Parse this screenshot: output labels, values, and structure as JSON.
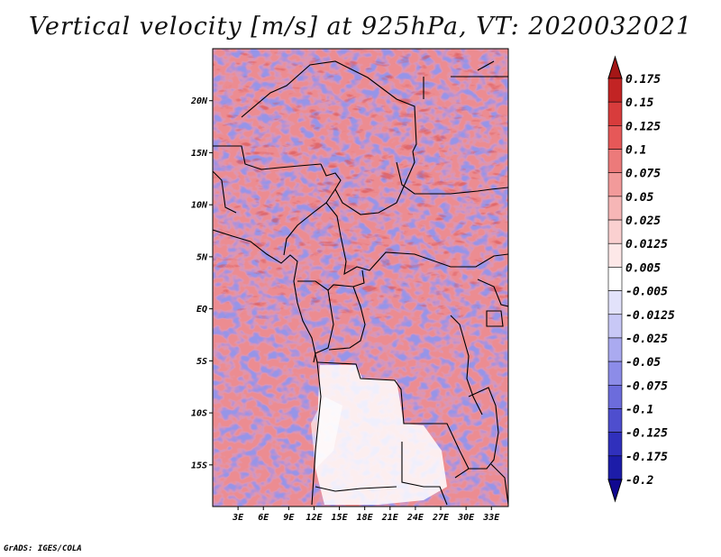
{
  "title": "Vertical velocity [m/s] at 925hPa, VT: 2020032021",
  "credit": "GrADS: IGES/COLA",
  "map": {
    "lat_range": [
      -19,
      25
    ],
    "lon_range": [
      0,
      35
    ],
    "lat_ticks": [
      {
        "value": 20,
        "label": "20N"
      },
      {
        "value": 15,
        "label": "15N"
      },
      {
        "value": 10,
        "label": "10N"
      },
      {
        "value": 5,
        "label": "5N"
      },
      {
        "value": 0,
        "label": "EQ"
      },
      {
        "value": -5,
        "label": "5S"
      },
      {
        "value": -10,
        "label": "10S"
      },
      {
        "value": -15,
        "label": "15S"
      }
    ],
    "lon_ticks": [
      {
        "value": 3,
        "label": "3E"
      },
      {
        "value": 6,
        "label": "6E"
      },
      {
        "value": 9,
        "label": "9E"
      },
      {
        "value": 12,
        "label": "12E"
      },
      {
        "value": 15,
        "label": "15E"
      },
      {
        "value": 18,
        "label": "18E"
      },
      {
        "value": 21,
        "label": "21E"
      },
      {
        "value": 24,
        "label": "24E"
      },
      {
        "value": 27,
        "label": "27E"
      },
      {
        "value": 30,
        "label": "30E"
      },
      {
        "value": 33,
        "label": "33E"
      }
    ]
  },
  "colorbar": {
    "levels": [
      "0.175",
      "0.15",
      "0.125",
      "0.1",
      "0.075",
      "0.05",
      "0.025",
      "0.0125",
      "0.005",
      "-0.005",
      "-0.0125",
      "-0.025",
      "-0.05",
      "-0.075",
      "-0.1",
      "-0.125",
      "-0.175",
      "-0.2"
    ],
    "colors": [
      "#a41616",
      "#c22424",
      "#d83c3c",
      "#e65858",
      "#ec7a7a",
      "#f29a9a",
      "#f6b6b6",
      "#fad0d0",
      "#fde8e8",
      "#ffffff",
      "#e2e2fa",
      "#c8c8f6",
      "#aaaaf0",
      "#8c8ce8",
      "#6c6cdc",
      "#4e4ece",
      "#3030bc",
      "#1c1ca8",
      "#100890"
    ]
  }
}
